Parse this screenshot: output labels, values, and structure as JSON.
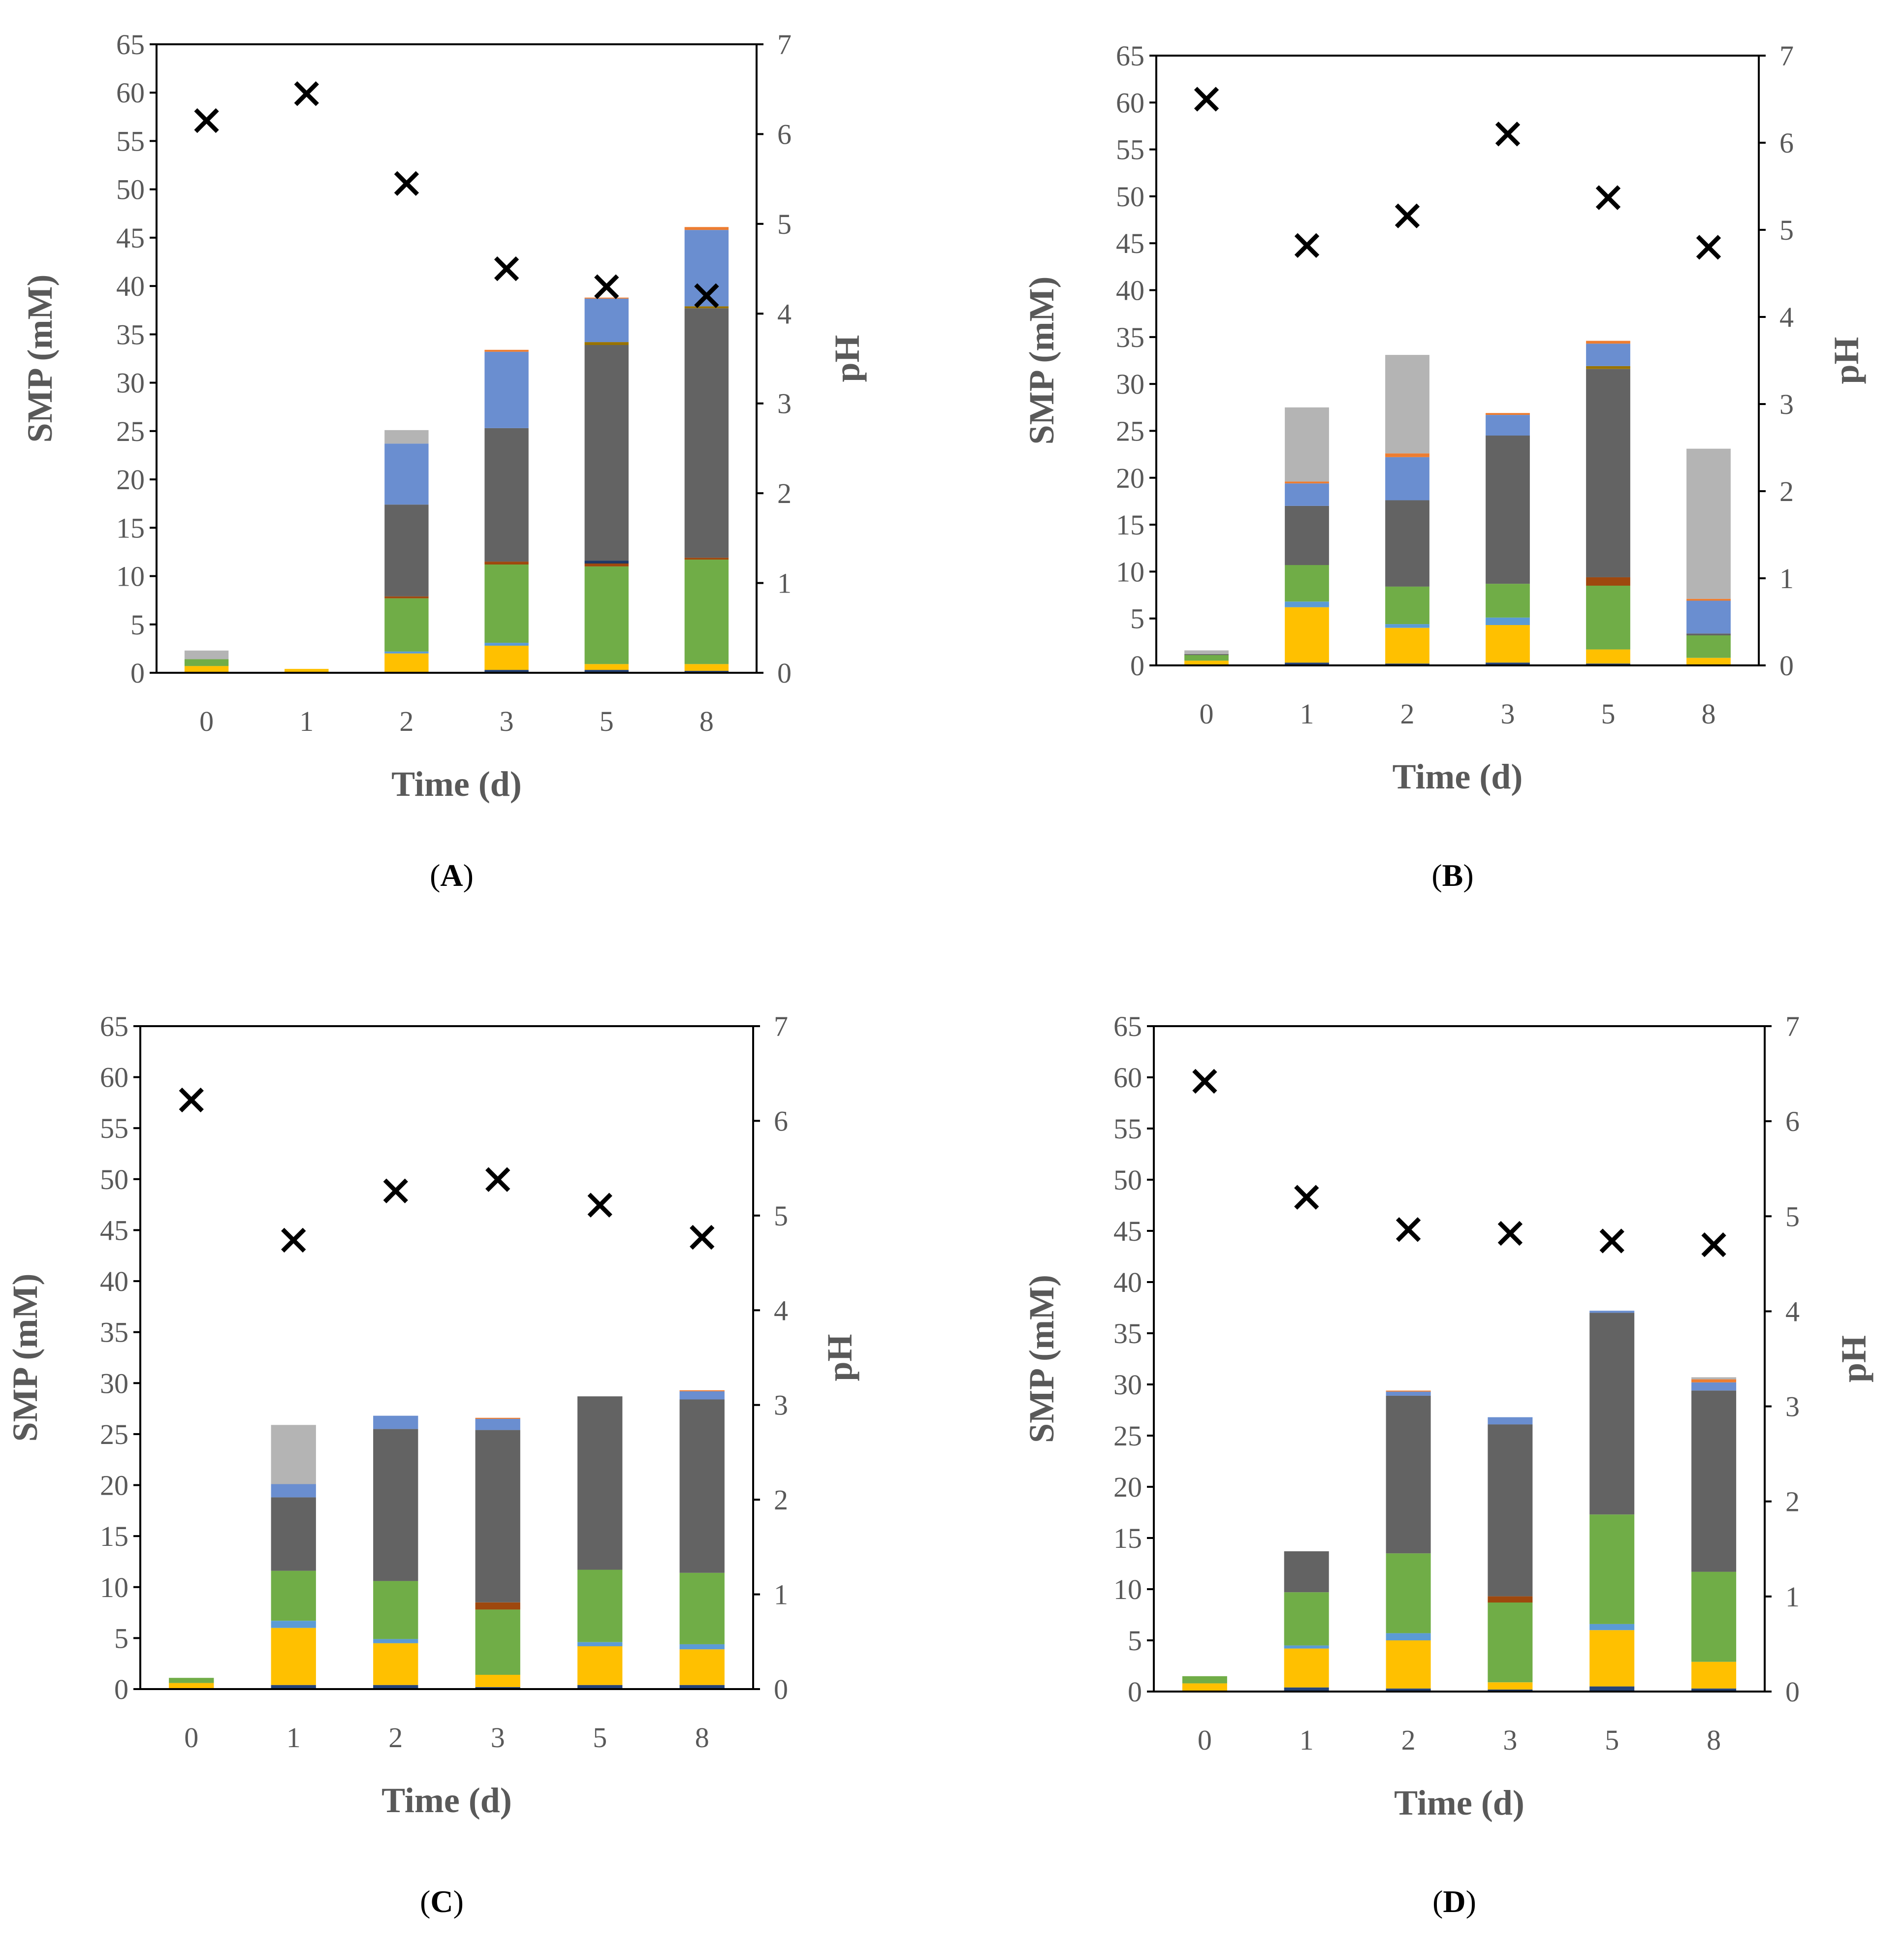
{
  "chart_data": [
    {
      "type": "bar",
      "panel_label": "A",
      "categories": [
        "0",
        "1",
        "2",
        "3",
        "5",
        "8"
      ],
      "xlabel": "Time (d)",
      "ylabel": "SMP (mM)",
      "y2label": "pH",
      "ylim": [
        0,
        65
      ],
      "y2lim": [
        0,
        7
      ],
      "yticks": [
        "0",
        "5",
        "10",
        "15",
        "20",
        "25",
        "30",
        "35",
        "40",
        "45",
        "50",
        "55",
        "60",
        "65"
      ],
      "y2ticks": [
        "0",
        "1",
        "2",
        "3",
        "4",
        "5",
        "6",
        "7"
      ],
      "stacked_series": [
        {
          "color": "#264478",
          "values": [
            0,
            0,
            0,
            0.3,
            0.3,
            0.2
          ]
        },
        {
          "color": "#FFC000",
          "values": [
            0.7,
            0.4,
            2.0,
            2.5,
            0.6,
            0.7
          ]
        },
        {
          "color": "#5B9BD5",
          "values": [
            0,
            0,
            0.2,
            0.3,
            0,
            0
          ]
        },
        {
          "color": "#70AD47",
          "values": [
            0.7,
            0,
            5.5,
            8.1,
            10.1,
            10.8
          ]
        },
        {
          "color": "#9E480E",
          "values": [
            0,
            0,
            0.2,
            0.3,
            0.3,
            0.2
          ]
        },
        {
          "color": "#1F3864",
          "values": [
            0,
            0,
            0,
            0,
            0.3,
            0
          ]
        },
        {
          "color": "#636363",
          "values": [
            0,
            0,
            9.5,
            13.8,
            22.3,
            25.8
          ]
        },
        {
          "color": "#997300",
          "values": [
            0,
            0,
            0,
            0,
            0.3,
            0.2
          ]
        },
        {
          "color": "#6A8ED0",
          "values": [
            0,
            0,
            6.3,
            7.9,
            4.5,
            7.9
          ]
        },
        {
          "color": "#ED7D31",
          "values": [
            0,
            0,
            0,
            0.2,
            0.1,
            0.3
          ]
        },
        {
          "color": "#B4B4B4",
          "values": [
            0.9,
            0,
            1.4,
            0,
            0,
            0
          ]
        }
      ],
      "ph": [
        6.15,
        6.45,
        5.45,
        4.5,
        4.3,
        4.2
      ]
    },
    {
      "type": "bar",
      "panel_label": "B",
      "categories": [
        "0",
        "1",
        "2",
        "3",
        "5",
        "8"
      ],
      "xlabel": "Time (d)",
      "ylabel": "SMP (mM)",
      "y2label": "pH",
      "ylim": [
        0,
        65
      ],
      "y2lim": [
        0,
        7
      ],
      "yticks": [
        "0",
        "5",
        "10",
        "15",
        "20",
        "25",
        "30",
        "35",
        "40",
        "45",
        "50",
        "55",
        "60",
        "65"
      ],
      "y2ticks": [
        "0",
        "1",
        "2",
        "3",
        "4",
        "5",
        "6",
        "7"
      ],
      "stacked_series": [
        {
          "color": "#264478",
          "values": [
            0,
            0.3,
            0.2,
            0.3,
            0.2,
            0
          ]
        },
        {
          "color": "#FFC000",
          "values": [
            0.5,
            5.9,
            3.8,
            4.0,
            1.5,
            0.8
          ]
        },
        {
          "color": "#5B9BD5",
          "values": [
            0,
            0.6,
            0.4,
            0.8,
            0,
            0
          ]
        },
        {
          "color": "#70AD47",
          "values": [
            0.6,
            3.9,
            4.0,
            3.6,
            6.8,
            2.4
          ]
        },
        {
          "color": "#9E480E",
          "values": [
            0,
            0,
            0,
            0,
            0.9,
            0
          ]
        },
        {
          "color": "#1F3864",
          "values": [
            0,
            0,
            0,
            0,
            0,
            0
          ]
        },
        {
          "color": "#636363",
          "values": [
            0.1,
            6.3,
            9.2,
            15.8,
            22.2,
            0.2
          ]
        },
        {
          "color": "#997300",
          "values": [
            0,
            0,
            0,
            0,
            0.3,
            0
          ]
        },
        {
          "color": "#6A8ED0",
          "values": [
            0,
            2.4,
            4.6,
            2.2,
            2.4,
            3.5
          ]
        },
        {
          "color": "#ED7D31",
          "values": [
            0,
            0.2,
            0.4,
            0.2,
            0.3,
            0.2
          ]
        },
        {
          "color": "#B4B4B4",
          "values": [
            0.4,
            7.9,
            10.5,
            0,
            0,
            16.0
          ]
        }
      ],
      "ph": [
        6.5,
        4.82,
        5.16,
        6.1,
        5.37,
        4.8
      ]
    },
    {
      "type": "bar",
      "panel_label": "C",
      "categories": [
        "0",
        "1",
        "2",
        "3",
        "5",
        "8"
      ],
      "xlabel": "Time (d)",
      "ylabel": "SMP (mM)",
      "y2label": "pH",
      "ylim": [
        0,
        65
      ],
      "y2lim": [
        0,
        7
      ],
      "yticks": [
        "0",
        "5",
        "10",
        "15",
        "20",
        "25",
        "30",
        "35",
        "40",
        "45",
        "50",
        "55",
        "60",
        "65"
      ],
      "y2ticks": [
        "0",
        "1",
        "2",
        "3",
        "4",
        "5",
        "6",
        "7"
      ],
      "stacked_series": [
        {
          "color": "#264478",
          "values": [
            0,
            0.4,
            0.4,
            0.2,
            0.4,
            0.4
          ]
        },
        {
          "color": "#FFC000",
          "values": [
            0.6,
            5.6,
            4.1,
            1.2,
            3.8,
            3.5
          ]
        },
        {
          "color": "#5B9BD5",
          "values": [
            0,
            0.7,
            0.4,
            0,
            0.4,
            0.5
          ]
        },
        {
          "color": "#70AD47",
          "values": [
            0.5,
            4.9,
            5.7,
            6.4,
            7.1,
            7.0
          ]
        },
        {
          "color": "#9E480E",
          "values": [
            0,
            0,
            0,
            0.7,
            0,
            0
          ]
        },
        {
          "color": "#1F3864",
          "values": [
            0,
            0,
            0,
            0,
            0,
            0
          ]
        },
        {
          "color": "#636363",
          "values": [
            0,
            7.2,
            14.9,
            16.9,
            17.0,
            17.0
          ]
        },
        {
          "color": "#997300",
          "values": [
            0,
            0,
            0,
            0,
            0,
            0
          ]
        },
        {
          "color": "#6A8ED0",
          "values": [
            0,
            1.3,
            1.3,
            1.1,
            0,
            0.8
          ]
        },
        {
          "color": "#ED7D31",
          "values": [
            0,
            0,
            0,
            0.1,
            0,
            0.1
          ]
        },
        {
          "color": "#B4B4B4",
          "values": [
            0,
            5.8,
            0,
            0,
            0,
            0
          ]
        }
      ],
      "ph": [
        6.22,
        4.74,
        5.26,
        5.38,
        5.11,
        4.77
      ]
    },
    {
      "type": "bar",
      "panel_label": "D",
      "categories": [
        "0",
        "1",
        "2",
        "3",
        "5",
        "8"
      ],
      "xlabel": "Time (d)",
      "ylabel": "SMP (mM)",
      "y2label": "pH",
      "ylim": [
        0,
        65
      ],
      "y2lim": [
        0,
        7
      ],
      "yticks": [
        "0",
        "5",
        "10",
        "15",
        "20",
        "25",
        "30",
        "35",
        "40",
        "45",
        "50",
        "55",
        "60",
        "65"
      ],
      "y2ticks": [
        "0",
        "1",
        "2",
        "3",
        "4",
        "5",
        "6",
        "7"
      ],
      "stacked_series": [
        {
          "color": "#264478",
          "values": [
            0,
            0.4,
            0.3,
            0.2,
            0.5,
            0.3
          ]
        },
        {
          "color": "#FFC000",
          "values": [
            0.8,
            3.8,
            4.7,
            0.7,
            5.5,
            2.6
          ]
        },
        {
          "color": "#5B9BD5",
          "values": [
            0,
            0.3,
            0.7,
            0,
            0.6,
            0
          ]
        },
        {
          "color": "#70AD47",
          "values": [
            0.7,
            5.2,
            7.8,
            7.8,
            10.7,
            8.8
          ]
        },
        {
          "color": "#9E480E",
          "values": [
            0,
            0,
            0,
            0.6,
            0,
            0
          ]
        },
        {
          "color": "#1F3864",
          "values": [
            0,
            0,
            0,
            0,
            0,
            0
          ]
        },
        {
          "color": "#636363",
          "values": [
            0,
            4.0,
            15.4,
            16.8,
            19.7,
            17.7
          ]
        },
        {
          "color": "#997300",
          "values": [
            0,
            0,
            0,
            0,
            0,
            0
          ]
        },
        {
          "color": "#6A8ED0",
          "values": [
            0,
            0,
            0.4,
            0.7,
            0.2,
            0.8
          ]
        },
        {
          "color": "#ED7D31",
          "values": [
            0,
            0,
            0.1,
            0,
            0,
            0.3
          ]
        },
        {
          "color": "#B4B4B4",
          "values": [
            0,
            0,
            0,
            0,
            0,
            0.2
          ]
        }
      ],
      "ph": [
        6.42,
        5.2,
        4.86,
        4.82,
        4.74,
        4.7
      ]
    }
  ]
}
